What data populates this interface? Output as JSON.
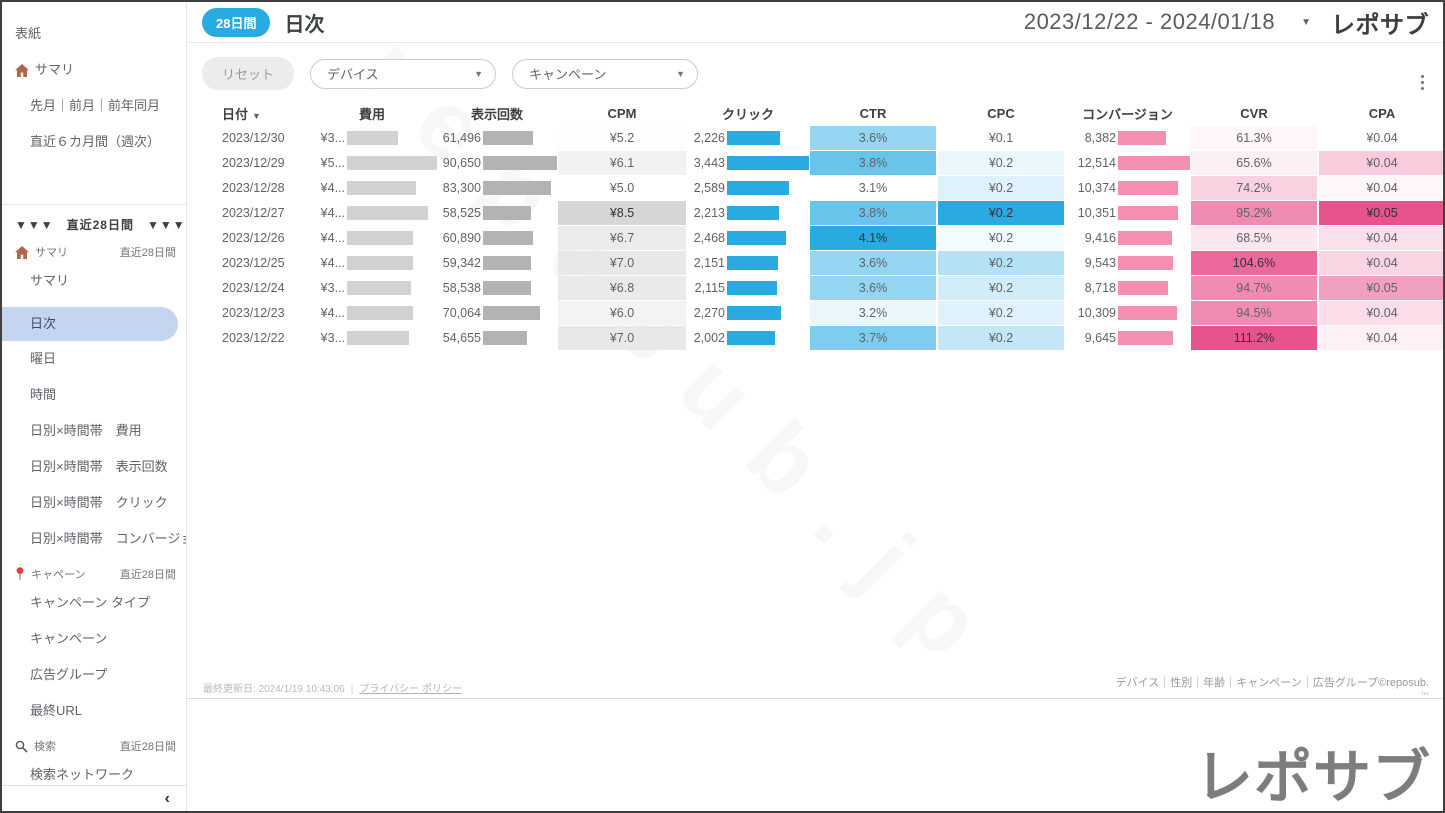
{
  "header": {
    "badge": "28日間",
    "title": "日次",
    "date_range": "2023/12/22 - 2024/01/18",
    "logo": "レポサブ"
  },
  "filters": {
    "reset": "リセット",
    "device": "デバイス",
    "campaign": "キャンペーン"
  },
  "sidebar": {
    "items": [
      {
        "type": "item",
        "label": "表紙"
      },
      {
        "type": "item",
        "label": "サマリ",
        "icon": "house-icon"
      },
      {
        "type": "item",
        "indent": true,
        "label": "先月｜前月｜前年同月"
      },
      {
        "type": "item",
        "indent": true,
        "label": "直近６カ月間（週次）"
      },
      {
        "type": "divider"
      },
      {
        "type": "banner",
        "label": "▼▼▼　直近28日間　▼▼▼"
      },
      {
        "type": "section",
        "label": "サマリ",
        "icon": "house-icon",
        "badge": "直近28日間"
      },
      {
        "type": "item",
        "indent": true,
        "label": "サマリ"
      },
      {
        "type": "item",
        "indent": true,
        "label": "日次",
        "selected": true
      },
      {
        "type": "item",
        "indent": true,
        "label": "曜日"
      },
      {
        "type": "item",
        "indent": true,
        "label": "時間"
      },
      {
        "type": "item",
        "indent": true,
        "label": "日別×時間帯　費用"
      },
      {
        "type": "item",
        "indent": true,
        "label": "日別×時間帯　表示回数"
      },
      {
        "type": "item",
        "indent": true,
        "label": "日別×時間帯　クリック"
      },
      {
        "type": "item",
        "indent": true,
        "label": "日別×時間帯　コンバージョ..."
      },
      {
        "type": "section",
        "label": "キャペーン",
        "icon": "pin-icon",
        "badge": "直近28日間"
      },
      {
        "type": "item",
        "indent": true,
        "label": "キャンペーン タイプ"
      },
      {
        "type": "item",
        "indent": true,
        "label": "キャンペーン"
      },
      {
        "type": "item",
        "indent": true,
        "label": "広告グループ"
      },
      {
        "type": "item",
        "indent": true,
        "label": "最終URL"
      },
      {
        "type": "section",
        "label": "検索",
        "icon": "search-icon",
        "badge": "直近28日間"
      },
      {
        "type": "item",
        "indent": true,
        "label": "検索ネットワーク"
      },
      {
        "type": "item",
        "indent": true,
        "label": "検索キーワード"
      }
    ],
    "collapse": "‹"
  },
  "table": {
    "columns": [
      "日付",
      "費用",
      "表示回数",
      "CPM",
      "クリック",
      "CTR",
      "CPC",
      "コンバージョン",
      "CVR",
      "CPA"
    ],
    "sort_column": "日付",
    "rows": [
      {
        "date": "2023/12/30",
        "cost": "¥3...",
        "cost_pct": 57,
        "imp": "61,496",
        "imp_pct": 68,
        "cpm": "¥5.2",
        "cpm_heat": 0.06,
        "clicks": "2,226",
        "clicks_pct": 65,
        "ctr": "3.6%",
        "ctr_heat": 0.5,
        "cpc": "¥0.1",
        "cpc_heat": 0,
        "conv": "8,382",
        "conv_pct": 67,
        "cvr": "61.3%",
        "cvr_heat": 0.05,
        "cpa": "¥0.04",
        "cpa_heat": 0
      },
      {
        "date": "2023/12/29",
        "cost": "¥5...",
        "cost_pct": 100,
        "imp": "90,650",
        "imp_pct": 100,
        "cpm": "¥6.1",
        "cpm_heat": 0.31,
        "clicks": "3,443",
        "clicks_pct": 100,
        "ctr": "3.8%",
        "ctr_heat": 0.7,
        "cpc": "¥0.2",
        "cpc_heat": 0.1,
        "conv": "12,514",
        "conv_pct": 100,
        "cvr": "65.6%",
        "cvr_heat": 0.09,
        "cpa": "¥0.04",
        "cpa_heat": 0.3
      },
      {
        "date": "2023/12/28",
        "cost": "¥4...",
        "cost_pct": 77,
        "imp": "83,300",
        "imp_pct": 92,
        "cpm": "¥5.0",
        "cpm_heat": 0,
        "clicks": "2,589",
        "clicks_pct": 75,
        "ctr": "3.1%",
        "ctr_heat": 0,
        "cpc": "¥0.2",
        "cpc_heat": 0.15,
        "conv": "10,374",
        "conv_pct": 83,
        "cvr": "74.2%",
        "cvr_heat": 0.26,
        "cpa": "¥0.04",
        "cpa_heat": 0.05
      },
      {
        "date": "2023/12/27",
        "cost": "¥4...",
        "cost_pct": 90,
        "imp": "58,525",
        "imp_pct": 65,
        "cpm": "¥8.5",
        "cpm_heat": 1,
        "clicks": "2,213",
        "clicks_pct": 64,
        "ctr": "3.8%",
        "ctr_heat": 0.7,
        "cpc": "¥0.2",
        "cpc_heat": 1,
        "conv": "10,351",
        "conv_pct": 83,
        "cvr": "95.2%",
        "cvr_heat": 0.68,
        "cpa": "¥0.05",
        "cpa_heat": 1
      },
      {
        "date": "2023/12/26",
        "cost": "¥4...",
        "cost_pct": 73,
        "imp": "60,890",
        "imp_pct": 67,
        "cpm": "¥6.7",
        "cpm_heat": 0.49,
        "clicks": "2,468",
        "clicks_pct": 72,
        "ctr": "4.1%",
        "ctr_heat": 1,
        "cpc": "¥0.2",
        "cpc_heat": 0.05,
        "conv": "9,416",
        "conv_pct": 75,
        "cvr": "68.5%",
        "cvr_heat": 0.14,
        "cpa": "¥0.04",
        "cpa_heat": 0.18
      },
      {
        "date": "2023/12/25",
        "cost": "¥4...",
        "cost_pct": 73,
        "imp": "59,342",
        "imp_pct": 65,
        "cpm": "¥7.0",
        "cpm_heat": 0.57,
        "clicks": "2,151",
        "clicks_pct": 62,
        "ctr": "3.6%",
        "ctr_heat": 0.5,
        "cpc": "¥0.2",
        "cpc_heat": 0.35,
        "conv": "9,543",
        "conv_pct": 76,
        "cvr": "104.6%",
        "cvr_heat": 0.87,
        "cpa": "¥0.04",
        "cpa_heat": 0.25
      },
      {
        "date": "2023/12/24",
        "cost": "¥3...",
        "cost_pct": 71,
        "imp": "58,538",
        "imp_pct": 65,
        "cpm": "¥6.8",
        "cpm_heat": 0.51,
        "clicks": "2,115",
        "clicks_pct": 61,
        "ctr": "3.6%",
        "ctr_heat": 0.5,
        "cpc": "¥0.2",
        "cpc_heat": 0.22,
        "conv": "8,718",
        "conv_pct": 70,
        "cvr": "94.7%",
        "cvr_heat": 0.67,
        "cpa": "¥0.05",
        "cpa_heat": 0.55
      },
      {
        "date": "2023/12/23",
        "cost": "¥4...",
        "cost_pct": 73,
        "imp": "70,064",
        "imp_pct": 77,
        "cpm": "¥6.0",
        "cpm_heat": 0.29,
        "clicks": "2,270",
        "clicks_pct": 66,
        "ctr": "3.2%",
        "ctr_heat": 0.1,
        "cpc": "¥0.2",
        "cpc_heat": 0.15,
        "conv": "10,309",
        "conv_pct": 82,
        "cvr": "94.5%",
        "cvr_heat": 0.67,
        "cpa": "¥0.04",
        "cpa_heat": 0.2
      },
      {
        "date": "2023/12/22",
        "cost": "¥3...",
        "cost_pct": 69,
        "imp": "54,655",
        "imp_pct": 60,
        "cpm": "¥7.0",
        "cpm_heat": 0.57,
        "clicks": "2,002",
        "clicks_pct": 58,
        "ctr": "3.7%",
        "ctr_heat": 0.6,
        "cpc": "¥0.2",
        "cpc_heat": 0.28,
        "conv": "9,645",
        "conv_pct": 77,
        "cvr": "111.2%",
        "cvr_heat": 1,
        "cpa": "¥0.04",
        "cpa_heat": 0.08
      }
    ]
  },
  "footer": {
    "last_updated": "最終更新日: 2024/1/19 10:43:06",
    "privacy": "プライバシー ポリシー",
    "dimensions": "デバイス｜性別｜年齢｜キャンペーン｜広告グループ©reposub.",
    "dimensions_cut": "jp"
  },
  "bottom_logo": "レポサブ",
  "watermark": "reposub.jp",
  "colors": {
    "accent_blue": "#29abe2",
    "bar_gray_light": "#d2d2d2",
    "bar_gray_dark": "#b3b3b3",
    "bar_pink": "#f48fb0",
    "heat_gray": "#d6d6d6",
    "heat_pink": "#e8538e",
    "selected_bg": "#c5d5ef"
  }
}
